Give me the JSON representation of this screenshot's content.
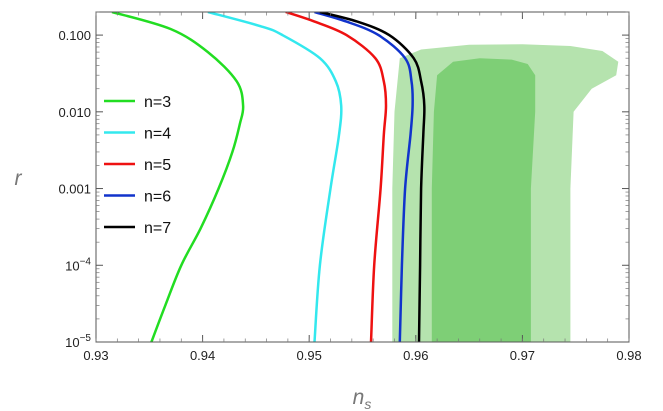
{
  "chart_data": {
    "type": "line",
    "xlabel": "n",
    "xlabel_sub": "s",
    "ylabel": "r",
    "xlim": [
      0.93,
      0.98
    ],
    "ylim": [
      1e-05,
      0.2
    ],
    "yscale": "log",
    "x_ticks": [
      0.93,
      0.94,
      0.95,
      0.96,
      0.97,
      0.98
    ],
    "x_tick_labels": [
      "0.93",
      "0.94",
      "0.95",
      "0.96",
      "0.97",
      "0.98"
    ],
    "y_ticks": [
      {
        "value": 1e-05,
        "base": "10",
        "exp": "−5"
      },
      {
        "value": 0.0001,
        "base": "10",
        "exp": "−4"
      },
      {
        "value": 0.001,
        "label": "0.001"
      },
      {
        "value": 0.01,
        "label": "0.010"
      },
      {
        "value": 0.1,
        "label": "0.100"
      }
    ],
    "grid": false,
    "legend_position": "left-center",
    "contours": [
      {
        "level": "95%",
        "color": "#b5e3ae",
        "points": [
          [
            0.9578,
            1e-05
          ],
          [
            0.9578,
            0.001
          ],
          [
            0.958,
            0.01
          ],
          [
            0.9585,
            0.05
          ],
          [
            0.9605,
            0.065
          ],
          [
            0.965,
            0.075
          ],
          [
            0.97,
            0.076
          ],
          [
            0.9745,
            0.072
          ],
          [
            0.9775,
            0.062
          ],
          [
            0.979,
            0.045
          ],
          [
            0.9788,
            0.03
          ],
          [
            0.9765,
            0.02
          ],
          [
            0.9748,
            0.01
          ],
          [
            0.9745,
            0.001
          ],
          [
            0.9745,
            1e-05
          ]
        ]
      },
      {
        "level": "68%",
        "color": "#7ecf76",
        "points": [
          [
            0.9615,
            1e-05
          ],
          [
            0.9615,
            0.001
          ],
          [
            0.9617,
            0.01
          ],
          [
            0.962,
            0.03
          ],
          [
            0.9635,
            0.045
          ],
          [
            0.966,
            0.05
          ],
          [
            0.969,
            0.048
          ],
          [
            0.9705,
            0.042
          ],
          [
            0.9712,
            0.03
          ],
          [
            0.9712,
            0.01
          ],
          [
            0.9708,
            0.001
          ],
          [
            0.9708,
            1e-05
          ]
        ]
      }
    ],
    "series": [
      {
        "name": "n=3",
        "color": "#22dd22",
        "points": [
          [
            0.9352,
            1e-05
          ],
          [
            0.9365,
            3e-05
          ],
          [
            0.938,
            0.0001
          ],
          [
            0.9398,
            0.0003
          ],
          [
            0.9415,
            0.001
          ],
          [
            0.9428,
            0.003
          ],
          [
            0.9435,
            0.007
          ],
          [
            0.9438,
            0.012
          ],
          [
            0.9432,
            0.025
          ],
          [
            0.9405,
            0.06
          ],
          [
            0.937,
            0.12
          ],
          [
            0.9315,
            0.2
          ]
        ]
      },
      {
        "name": "n=4",
        "color": "#33e8ee",
        "points": [
          [
            0.9505,
            1e-05
          ],
          [
            0.951,
            0.0001
          ],
          [
            0.952,
            0.001
          ],
          [
            0.9528,
            0.005
          ],
          [
            0.953,
            0.012
          ],
          [
            0.9525,
            0.025
          ],
          [
            0.951,
            0.05
          ],
          [
            0.9475,
            0.1
          ],
          [
            0.9455,
            0.13
          ],
          [
            0.9405,
            0.2
          ]
        ]
      },
      {
        "name": "n=5",
        "color": "#ee1111",
        "points": [
          [
            0.9558,
            1e-05
          ],
          [
            0.9561,
            0.0001
          ],
          [
            0.9567,
            0.001
          ],
          [
            0.957,
            0.005
          ],
          [
            0.9572,
            0.012
          ],
          [
            0.957,
            0.025
          ],
          [
            0.9562,
            0.05
          ],
          [
            0.9535,
            0.1
          ],
          [
            0.9505,
            0.15
          ],
          [
            0.9478,
            0.2
          ]
        ]
      },
      {
        "name": "n=6",
        "color": "#1133cc",
        "points": [
          [
            0.9585,
            1e-05
          ],
          [
            0.9587,
            0.0001
          ],
          [
            0.959,
            0.001
          ],
          [
            0.9595,
            0.005
          ],
          [
            0.9597,
            0.012
          ],
          [
            0.9596,
            0.025
          ],
          [
            0.959,
            0.05
          ],
          [
            0.9565,
            0.1
          ],
          [
            0.9535,
            0.15
          ],
          [
            0.9505,
            0.2
          ]
        ]
      },
      {
        "name": "n=7",
        "color": "#000000",
        "points": [
          [
            0.9603,
            1e-05
          ],
          [
            0.9604,
            0.0001
          ],
          [
            0.9605,
            0.001
          ],
          [
            0.9607,
            0.005
          ],
          [
            0.9608,
            0.012
          ],
          [
            0.9605,
            0.025
          ],
          [
            0.9598,
            0.05
          ],
          [
            0.9575,
            0.1
          ],
          [
            0.9545,
            0.15
          ],
          [
            0.951,
            0.2
          ]
        ]
      }
    ]
  }
}
